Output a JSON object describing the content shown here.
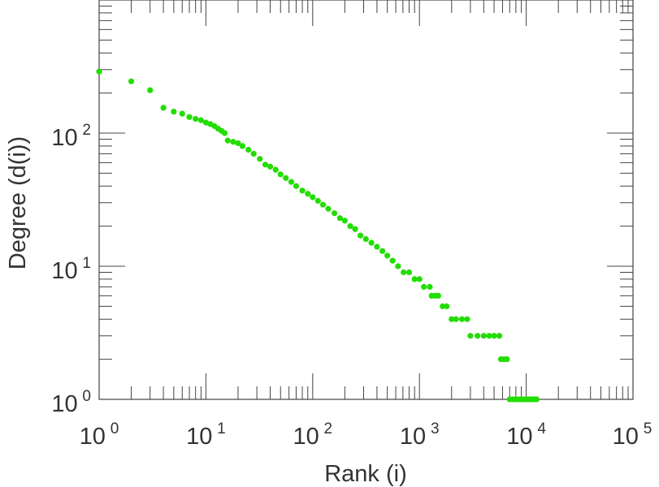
{
  "chart_data": {
    "type": "scatter",
    "title": "",
    "xlabel": "Rank (i)",
    "ylabel": "Degree (d(i))",
    "x_scale": "log",
    "y_scale": "log",
    "xlim": [
      1,
      100000
    ],
    "ylim": [
      1,
      1000
    ],
    "x_ticks": [
      {
        "base": "10",
        "exp": "0",
        "value": 1
      },
      {
        "base": "10",
        "exp": "1",
        "value": 10
      },
      {
        "base": "10",
        "exp": "2",
        "value": 100
      },
      {
        "base": "10",
        "exp": "3",
        "value": 1000
      },
      {
        "base": "10",
        "exp": "4",
        "value": 10000
      },
      {
        "base": "10",
        "exp": "5",
        "value": 100000
      }
    ],
    "y_ticks": [
      {
        "base": "10",
        "exp": "0",
        "value": 1
      },
      {
        "base": "10",
        "exp": "1",
        "value": 10
      },
      {
        "base": "10",
        "exp": "2",
        "value": 100
      }
    ],
    "grid": false,
    "legend": "none",
    "marker_color": "#22dd00",
    "series": [
      {
        "points": [
          [
            1,
            290
          ],
          [
            2,
            245
          ],
          [
            3,
            210
          ],
          [
            4,
            155
          ],
          [
            5,
            145
          ],
          [
            6,
            140
          ],
          [
            7,
            132
          ],
          [
            8,
            128
          ],
          [
            9,
            125
          ],
          [
            10,
            120
          ],
          [
            11,
            117
          ],
          [
            12,
            113
          ],
          [
            13,
            108
          ],
          [
            14,
            104
          ],
          [
            15,
            100
          ],
          [
            16,
            88
          ],
          [
            18,
            86
          ],
          [
            20,
            84
          ],
          [
            22,
            80
          ],
          [
            25,
            75
          ],
          [
            28,
            70
          ],
          [
            32,
            64
          ],
          [
            36,
            58
          ],
          [
            40,
            56
          ],
          [
            45,
            53
          ],
          [
            50,
            49
          ],
          [
            56,
            46
          ],
          [
            63,
            43
          ],
          [
            70,
            40
          ],
          [
            80,
            37
          ],
          [
            90,
            35
          ],
          [
            100,
            33
          ],
          [
            112,
            31
          ],
          [
            125,
            29
          ],
          [
            140,
            27
          ],
          [
            160,
            25
          ],
          [
            180,
            23
          ],
          [
            200,
            22
          ],
          [
            225,
            20
          ],
          [
            250,
            19
          ],
          [
            280,
            17
          ],
          [
            315,
            16
          ],
          [
            355,
            15
          ],
          [
            400,
            14
          ],
          [
            450,
            13
          ],
          [
            500,
            12
          ],
          [
            560,
            11
          ],
          [
            630,
            10
          ],
          [
            710,
            9
          ],
          [
            800,
            9
          ],
          [
            900,
            8
          ],
          [
            1000,
            8
          ],
          [
            1100,
            7
          ],
          [
            1250,
            7
          ],
          [
            1300,
            6
          ],
          [
            1400,
            6
          ],
          [
            1500,
            6
          ],
          [
            1650,
            5
          ],
          [
            1800,
            5
          ],
          [
            2000,
            4
          ],
          [
            2200,
            4
          ],
          [
            2500,
            4
          ],
          [
            2800,
            4
          ],
          [
            3000,
            3
          ],
          [
            3500,
            3
          ],
          [
            4000,
            3
          ],
          [
            4500,
            3
          ],
          [
            5000,
            3
          ],
          [
            5600,
            3
          ],
          [
            5800,
            2
          ],
          [
            6200,
            2
          ],
          [
            6600,
            2
          ],
          [
            7000,
            1
          ],
          [
            7500,
            1
          ],
          [
            8000,
            1
          ],
          [
            8500,
            1
          ],
          [
            9000,
            1
          ],
          [
            9500,
            1
          ],
          [
            10000,
            1
          ],
          [
            10500,
            1
          ],
          [
            11000,
            1
          ],
          [
            11500,
            1
          ],
          [
            12000,
            1
          ],
          [
            12500,
            1
          ]
        ]
      }
    ]
  }
}
